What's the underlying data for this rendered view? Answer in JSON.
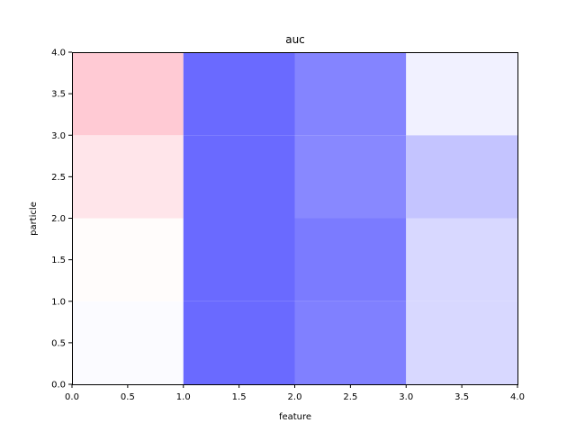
{
  "chart_data": {
    "type": "heatmap",
    "title": "auc",
    "xlabel": "feature",
    "ylabel": "particle",
    "xlim": [
      0.0,
      4.0
    ],
    "ylim": [
      0.0,
      4.0
    ],
    "xticks": [
      "0.0",
      "0.5",
      "1.0",
      "1.5",
      "2.0",
      "2.5",
      "3.0",
      "3.5",
      "4.0"
    ],
    "yticks": [
      "0.0",
      "0.5",
      "1.0",
      "1.5",
      "2.0",
      "2.5",
      "3.0",
      "3.5",
      "4.0"
    ],
    "grid": false,
    "colormap": "bwr",
    "cells": [
      {
        "x0": 0,
        "x1": 1,
        "y0": 0,
        "y1": 1,
        "color": "#fbfbff"
      },
      {
        "x0": 1,
        "x1": 2,
        "y0": 0,
        "y1": 1,
        "color": "#6a6aff"
      },
      {
        "x0": 2,
        "x1": 3,
        "y0": 0,
        "y1": 1,
        "color": "#8080ff"
      },
      {
        "x0": 3,
        "x1": 4,
        "y0": 0,
        "y1": 1,
        "color": "#d8d8ff"
      },
      {
        "x0": 0,
        "x1": 1,
        "y0": 1,
        "y1": 2,
        "color": "#fffcfb"
      },
      {
        "x0": 1,
        "x1": 2,
        "y0": 1,
        "y1": 2,
        "color": "#6a6aff"
      },
      {
        "x0": 2,
        "x1": 3,
        "y0": 1,
        "y1": 2,
        "color": "#7b7bff"
      },
      {
        "x0": 3,
        "x1": 4,
        "y0": 1,
        "y1": 2,
        "color": "#d8d8ff"
      },
      {
        "x0": 0,
        "x1": 1,
        "y0": 2,
        "y1": 3,
        "color": "#ffe5ea"
      },
      {
        "x0": 1,
        "x1": 2,
        "y0": 2,
        "y1": 3,
        "color": "#6a6aff"
      },
      {
        "x0": 2,
        "x1": 3,
        "y0": 2,
        "y1": 3,
        "color": "#8888ff"
      },
      {
        "x0": 3,
        "x1": 4,
        "y0": 2,
        "y1": 3,
        "color": "#c4c4ff"
      },
      {
        "x0": 0,
        "x1": 1,
        "y0": 3,
        "y1": 4,
        "color": "#ffcad4"
      },
      {
        "x0": 1,
        "x1": 2,
        "y0": 3,
        "y1": 4,
        "color": "#6a6aff"
      },
      {
        "x0": 2,
        "x1": 3,
        "y0": 3,
        "y1": 4,
        "color": "#8484ff"
      },
      {
        "x0": 3,
        "x1": 4,
        "y0": 3,
        "y1": 4,
        "color": "#f1f1ff"
      }
    ]
  }
}
